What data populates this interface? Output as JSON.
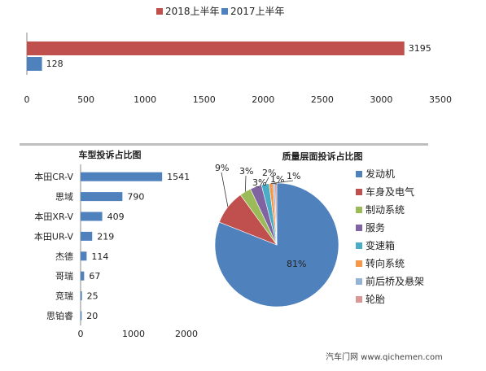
{
  "colors": {
    "red": "#c0504d",
    "blue": "#4f81bd",
    "green": "#9bbb59",
    "purple": "#8064a2",
    "teal": "#4bacc6",
    "orange": "#f79646",
    "lightblue": "#95b3d7",
    "pink": "#d99795",
    "divider": "#bfbfbf"
  },
  "chart_data": [
    {
      "id": "top",
      "type": "bar",
      "orientation": "horizontal",
      "categories": [
        ""
      ],
      "series": [
        {
          "name": "2018上半年",
          "values": [
            3195
          ],
          "color": "#c0504d"
        },
        {
          "name": "2017上半年",
          "values": [
            128
          ],
          "color": "#4f81bd"
        }
      ],
      "xticks": [
        "0",
        "500",
        "1000",
        "1500",
        "2000",
        "2500",
        "3000",
        "3500"
      ],
      "xlim": [
        0,
        3500
      ],
      "legend": "top-center",
      "grid": false
    },
    {
      "id": "models",
      "type": "bar",
      "orientation": "horizontal",
      "title": "车型投诉占比图",
      "categories": [
        "本田CR-V",
        "思域",
        "本田XR-V",
        "本田UR-V",
        "杰德",
        "哥瑞",
        "竞瑞",
        "思铂睿"
      ],
      "values": [
        1541,
        790,
        409,
        219,
        114,
        67,
        25,
        20
      ],
      "xticks": [
        "0",
        "1000",
        "2000"
      ],
      "xlim": [
        0,
        2000
      ],
      "color": "#4f81bd",
      "grid": false
    },
    {
      "id": "quality",
      "type": "pie",
      "title": "质量层面投诉占比图",
      "labels": [
        "发动机",
        "车身及电气",
        "制动系统",
        "服务",
        "变速箱",
        "转向系统",
        "前后桥及悬架",
        "轮胎"
      ],
      "values": [
        81,
        9,
        3,
        3,
        2,
        1,
        0.5,
        0.5
      ],
      "data_labels": [
        "81%",
        "9%",
        "3%",
        "3%",
        "2%",
        "1%",
        "1%",
        ""
      ],
      "colors": [
        "#4f81bd",
        "#c0504d",
        "#9bbb59",
        "#8064a2",
        "#4bacc6",
        "#f79646",
        "#95b3d7",
        "#d99795"
      ],
      "legend": "right"
    }
  ],
  "watermark": {
    "text": "汽车门网 www.qichemen.com"
  }
}
